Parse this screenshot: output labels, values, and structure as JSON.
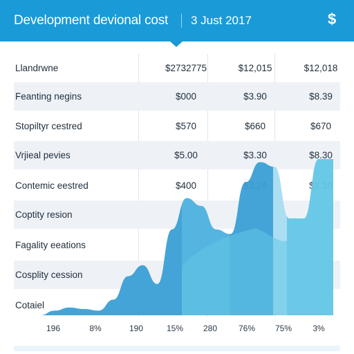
{
  "header": {
    "title": "Development devional cost",
    "date": "3 Just 2017",
    "icon": "dollar-icon",
    "icon_glyph": "$"
  },
  "table": {
    "column_headers": [
      "$2732775",
      "$12,015",
      "$12,018"
    ],
    "header_label": "Llandrwne",
    "rows": [
      {
        "label": "Feanting negins",
        "values": [
          "$000",
          "$3.90",
          "$8.39"
        ]
      },
      {
        "label": "Stopiltyr cestred",
        "values": [
          "$570",
          "$660",
          "$670"
        ]
      },
      {
        "label": "Vrjieal pevies",
        "values": [
          "$5.00",
          "$3.30",
          "$8.30"
        ]
      },
      {
        "label": "Contemic eestred",
        "values": [
          "$400",
          "$3.24",
          "$1.10"
        ]
      },
      {
        "label": "Coptity resion",
        "values": [
          "",
          "",
          ""
        ]
      },
      {
        "label": "Fagality eeations",
        "values": [
          "",
          "",
          ""
        ]
      },
      {
        "label": "Cosplity cession",
        "values": [
          "",
          "",
          ""
        ]
      },
      {
        "label": "Cotaiel",
        "values": [
          "",
          "",
          ""
        ]
      }
    ]
  },
  "chart_data": {
    "type": "area",
    "x_tick_labels": [
      "196",
      "8%",
      "190",
      "15%",
      "280",
      "76%",
      "75%",
      "3%"
    ],
    "colors": {
      "header": "#1a9ad6",
      "area_dark": "#3a9fd5",
      "area_mid": "#4db0df",
      "area_light": "#62c6e6",
      "area_pale": "#a8dcf1"
    },
    "series": [
      {
        "values": [
          0.0,
          0.03,
          0.05,
          0.04,
          0.03,
          0.1,
          0.25,
          0.32,
          0.2,
          0.55,
          0.75,
          0.7,
          0.55,
          0.52,
          0.85,
          0.98,
          0.95,
          0.62,
          0.62,
          1.0,
          1.0
        ]
      }
    ]
  }
}
